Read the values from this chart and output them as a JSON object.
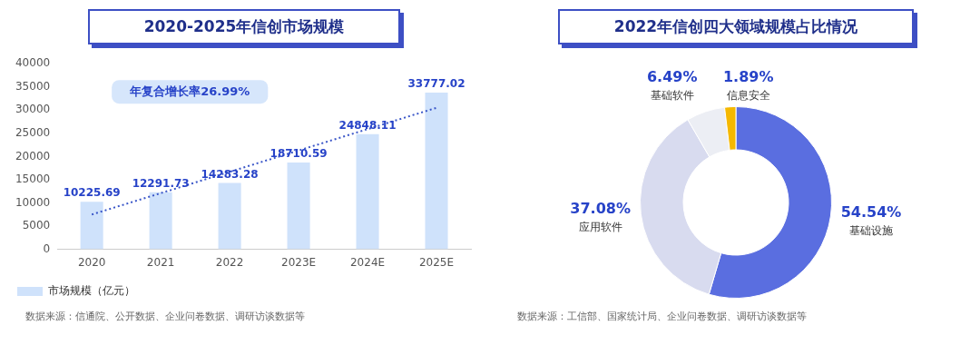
{
  "chart_data": [
    {
      "type": "bar",
      "title": "2020-2025年信创市场规模",
      "categories": [
        "2020",
        "2021",
        "2022",
        "2023E",
        "2024E",
        "2025E"
      ],
      "series": [
        {
          "name": "市场规模（亿元）",
          "color": "#cfe2fb",
          "values": [
            10225.69,
            12291.73,
            14283.28,
            18710.59,
            24848.11,
            33777.02
          ],
          "value_labels": [
            "10225.69",
            "12291.73",
            "14283.28",
            "18710.59",
            "24848.11",
            "33777.02"
          ]
        },
        {
          "type": "line",
          "color": "#3a56c8",
          "line_style": "dotted",
          "marker": "none",
          "values": [
            7500,
            12100,
            16700,
            21300,
            25900,
            30500
          ]
        }
      ],
      "ylim": [
        0,
        40000
      ],
      "yticks": [
        0,
        5000,
        10000,
        15000,
        20000,
        25000,
        30000,
        35000,
        40000
      ],
      "grid": false,
      "legend": "bottom left",
      "annotations": [
        "年复合增长率26.99%",
        "数据来源：信通院、公开数据、企业问卷数据、调研访谈数据等"
      ]
    },
    {
      "type": "donut",
      "title": "2022年信创四大领域规模占比情况",
      "categories": [
        "基础设施",
        "应用软件",
        "基础软件",
        "信息安全"
      ],
      "values": [
        54.54,
        37.08,
        6.49,
        1.89
      ],
      "value_labels": [
        "54.54%",
        "37.08%",
        "6.49%",
        "1.89%"
      ],
      "colors": [
        "#5a6ee0",
        "#d8dbef",
        "#eceef4",
        "#f5b800"
      ],
      "legend": false,
      "annotations": [
        "数据来源：工信部、国家统计局、企业问卷数据、调研访谈数据等"
      ]
    }
  ]
}
